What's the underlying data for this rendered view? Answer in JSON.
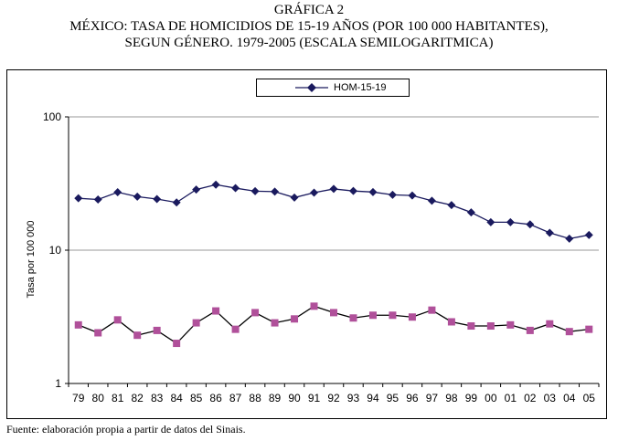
{
  "header": {
    "line1": "GRÁFICA 2",
    "line2": "MÉXICO: TASA DE HOMICIDIOS DE 15-19 AÑOS (POR 100 000 HABITANTES),",
    "line3": "SEGUN GÉNERO. 1979-2005 (ESCALA SEMILOGARITMICA)"
  },
  "footer": {
    "source": "Fuente: elaboración propia a partir de datos del Sinais."
  },
  "chart_data": {
    "type": "line",
    "yscale": "log",
    "ylabel": "Tasa por 100 000",
    "ylim": [
      1,
      100
    ],
    "yticks": [
      "1",
      "10",
      "100"
    ],
    "legend_position": "top-center",
    "categories": [
      "79",
      "80",
      "81",
      "82",
      "83",
      "84",
      "85",
      "86",
      "87",
      "88",
      "89",
      "90",
      "91",
      "92",
      "93",
      "94",
      "95",
      "96",
      "97",
      "98",
      "99",
      "00",
      "01",
      "02",
      "03",
      "04",
      "05"
    ],
    "series": [
      {
        "name": "HOM-15-19",
        "color": "#1a1a5e",
        "marker": "diamond",
        "values": [
          24.5,
          24.0,
          27.2,
          25.2,
          24.2,
          22.8,
          28.5,
          31.0,
          29.2,
          27.7,
          27.5,
          24.8,
          27.0,
          28.8,
          27.8,
          27.3,
          26.0,
          25.7,
          23.5,
          21.8,
          19.2,
          16.2,
          16.2,
          15.6,
          13.5,
          12.2,
          13.0
        ]
      },
      {
        "name": "",
        "color": "#b0509a",
        "marker": "square",
        "values": [
          2.75,
          2.4,
          3.0,
          2.3,
          2.5,
          2.0,
          2.85,
          3.5,
          2.55,
          3.4,
          2.85,
          3.05,
          3.8,
          3.4,
          3.1,
          3.25,
          3.25,
          3.15,
          3.55,
          2.9,
          2.7,
          2.7,
          2.75,
          2.5,
          2.8,
          2.45,
          2.55
        ]
      }
    ]
  }
}
